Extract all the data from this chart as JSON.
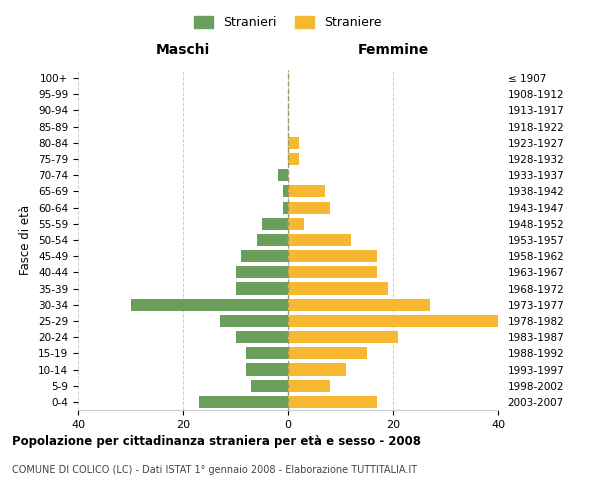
{
  "age_groups": [
    "0-4",
    "5-9",
    "10-14",
    "15-19",
    "20-24",
    "25-29",
    "30-34",
    "35-39",
    "40-44",
    "45-49",
    "50-54",
    "55-59",
    "60-64",
    "65-69",
    "70-74",
    "75-79",
    "80-84",
    "85-89",
    "90-94",
    "95-99",
    "100+"
  ],
  "birth_years": [
    "2003-2007",
    "1998-2002",
    "1993-1997",
    "1988-1992",
    "1983-1987",
    "1978-1982",
    "1973-1977",
    "1968-1972",
    "1963-1967",
    "1958-1962",
    "1953-1957",
    "1948-1952",
    "1943-1947",
    "1938-1942",
    "1933-1937",
    "1928-1932",
    "1923-1927",
    "1918-1922",
    "1913-1917",
    "1908-1912",
    "≤ 1907"
  ],
  "maschi": [
    17,
    7,
    8,
    8,
    10,
    13,
    30,
    10,
    10,
    9,
    6,
    5,
    1,
    1,
    2,
    0,
    0,
    0,
    0,
    0,
    0
  ],
  "femmine": [
    17,
    8,
    11,
    15,
    21,
    40,
    27,
    19,
    17,
    17,
    12,
    3,
    8,
    7,
    0,
    2,
    2,
    0,
    0,
    0,
    0
  ],
  "color_maschi": "#6a9e5a",
  "color_femmine": "#f5b830",
  "title": "Popolazione per cittadinanza straniera per età e sesso - 2008",
  "subtitle": "COMUNE DI COLICO (LC) - Dati ISTAT 1° gennaio 2008 - Elaborazione TUTTITALIA.IT",
  "xlabel_left": "Maschi",
  "xlabel_right": "Femmine",
  "ylabel_left": "Fasce di età",
  "legend_maschi": "Stranieri",
  "legend_femmine": "Straniere",
  "xlim": 40,
  "background_color": "#ffffff",
  "grid_color": "#cccccc"
}
